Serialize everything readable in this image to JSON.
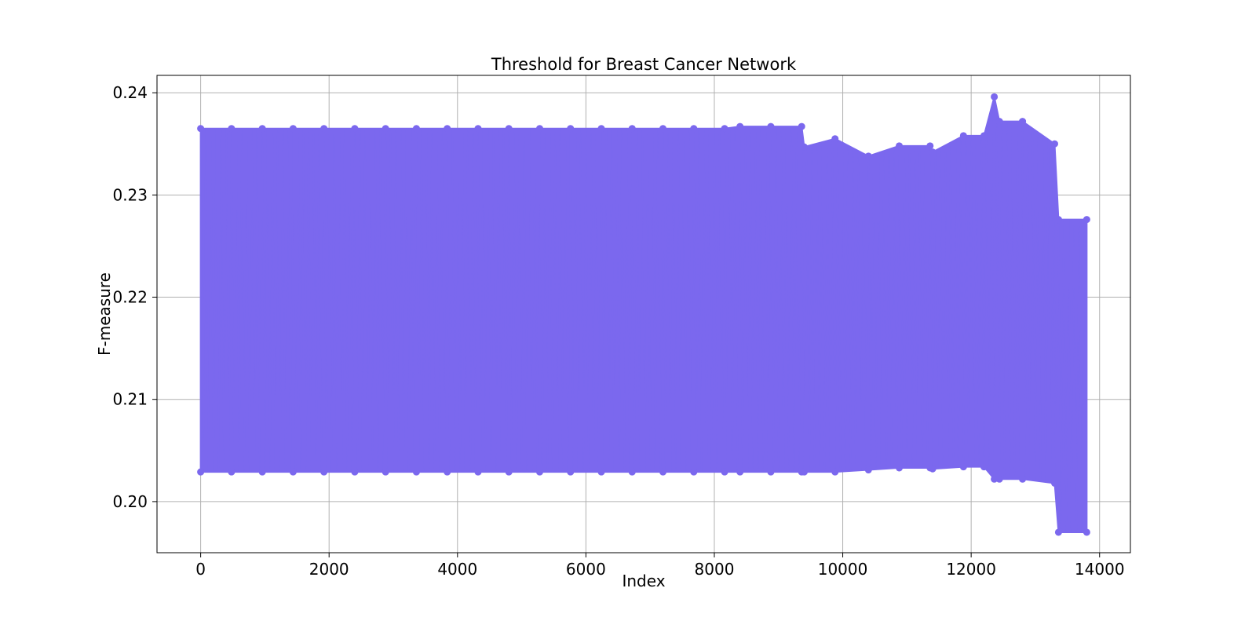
{
  "chart_data": {
    "type": "line",
    "title": "Threshold for Breast Cancer Network",
    "xlabel": "Index",
    "ylabel": "F-measure",
    "xlim": [
      -680,
      14480
    ],
    "ylim": [
      0.195,
      0.2417
    ],
    "xticks": [
      0,
      2000,
      4000,
      6000,
      8000,
      10000,
      12000,
      14000
    ],
    "yticks": [
      0.2,
      0.21,
      0.22,
      0.23,
      0.24
    ],
    "xtick_labels": [
      "0",
      "2000",
      "4000",
      "6000",
      "8000",
      "10000",
      "12000",
      "14000"
    ],
    "ytick_labels": [
      "0.20",
      "0.21",
      "0.22",
      "0.23",
      "0.24"
    ],
    "grid": true,
    "marker": "circle",
    "color": "#7b68ee",
    "series": [
      {
        "x": [
          0,
          480,
          960,
          1440,
          1920,
          2400,
          2880,
          3360,
          3840,
          4320,
          4800,
          5280,
          5760,
          6240,
          6720,
          7200,
          7680,
          8160,
          8400,
          8880,
          9360,
          9400,
          9880,
          10400,
          10880,
          11360,
          11400,
          11880,
          12200,
          12360,
          12440,
          12800,
          13300,
          13360,
          13800
        ],
        "y": [
          0.2365,
          0.2365,
          0.2365,
          0.2365,
          0.2365,
          0.2365,
          0.2365,
          0.2365,
          0.2365,
          0.2365,
          0.2365,
          0.2365,
          0.2365,
          0.2365,
          0.2365,
          0.2365,
          0.2365,
          0.2365,
          0.2367,
          0.2367,
          0.2367,
          0.2347,
          0.2355,
          0.2338,
          0.2348,
          0.2348,
          0.2342,
          0.2358,
          0.2358,
          0.2396,
          0.2372,
          0.2372,
          0.235,
          0.2276,
          0.2276
        ],
        "min": [
          0.2029,
          0.2029,
          0.2029,
          0.2029,
          0.2029,
          0.2029,
          0.2029,
          0.2029,
          0.2029,
          0.2029,
          0.2029,
          0.2029,
          0.2029,
          0.2029,
          0.2029,
          0.2029,
          0.2029,
          0.2029,
          0.2029,
          0.2029,
          0.2029,
          0.2029,
          0.2029,
          0.2031,
          0.2033,
          0.2033,
          0.2032,
          0.2034,
          0.2034,
          0.2022,
          0.2022,
          0.2022,
          0.2018,
          0.197,
          0.197
        ]
      }
    ]
  }
}
